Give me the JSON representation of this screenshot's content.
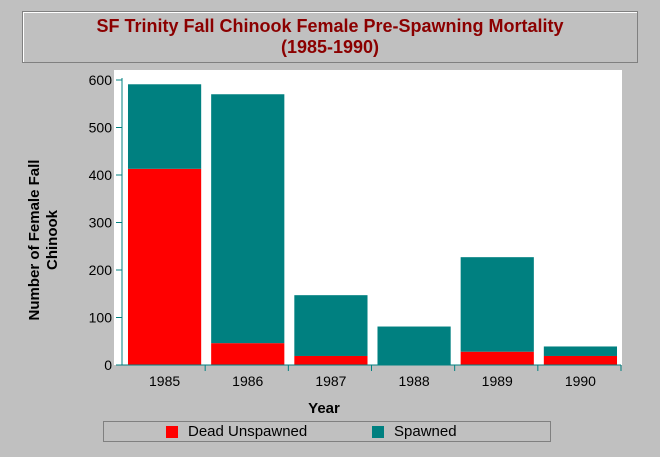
{
  "chart_data": {
    "type": "bar",
    "stacked": true,
    "title": "SF Trinity Fall Chinook Female Pre-Spawning Mortality",
    "subtitle": "(1985-1990)",
    "xlabel": "Year",
    "ylabel_lines": [
      "Number of Female Fall",
      "Chinook"
    ],
    "categories": [
      "1985",
      "1986",
      "1987",
      "1988",
      "1989",
      "1990"
    ],
    "series": [
      {
        "name": "Dead Unspawned",
        "color": "#ff0000",
        "values": [
          413,
          46,
          19,
          0,
          28,
          19
        ]
      },
      {
        "name": "Spawned",
        "color": "#008080",
        "values": [
          178,
          524,
          128,
          81,
          199,
          20
        ]
      }
    ],
    "ylim": [
      0,
      600
    ],
    "yticks": [
      0,
      100,
      200,
      300,
      400,
      500,
      600
    ],
    "grid": false,
    "legend_position": "bottom",
    "plot_background": "#ffffff",
    "page_background": "#c0c0c0"
  }
}
